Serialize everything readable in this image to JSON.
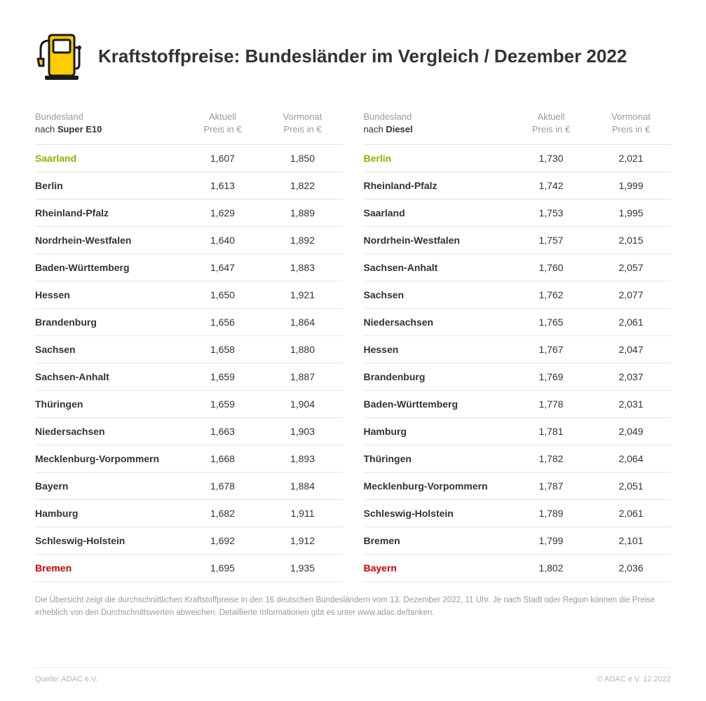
{
  "title": "Kraftstoffpreise: Bundesländer im Vergleich / Dezember 2022",
  "colors": {
    "accent_yellow": "#ffcc00",
    "icon_outline": "#1a1a1a",
    "text": "#333333",
    "muted": "#999999",
    "divider": "#e5e5e5",
    "best": "#8bb400",
    "worst": "#cc0000"
  },
  "left": {
    "header_top": "Bundesland",
    "header_bot_prefix": "nach ",
    "header_bot_bold": "Super E10",
    "col2_top": "Aktuell",
    "col2_bot": "Preis in €",
    "col3_top": "Vormonat",
    "col3_bot": "Preis in €",
    "rows": [
      {
        "name": "Saarland",
        "cur": "1,607",
        "prev": "1,850",
        "cls": "row-best"
      },
      {
        "name": "Berlin",
        "cur": "1,613",
        "prev": "1,822",
        "cls": ""
      },
      {
        "name": "Rheinland-Pfalz",
        "cur": "1,629",
        "prev": "1,889",
        "cls": ""
      },
      {
        "name": "Nordrhein-Westfalen",
        "cur": "1,640",
        "prev": "1,892",
        "cls": ""
      },
      {
        "name": "Baden-Württemberg",
        "cur": "1,647",
        "prev": "1,883",
        "cls": ""
      },
      {
        "name": "Hessen",
        "cur": "1,650",
        "prev": "1,921",
        "cls": ""
      },
      {
        "name": "Brandenburg",
        "cur": "1,656",
        "prev": "1,864",
        "cls": ""
      },
      {
        "name": "Sachsen",
        "cur": "1,658",
        "prev": "1,880",
        "cls": ""
      },
      {
        "name": "Sachsen-Anhalt",
        "cur": "1,659",
        "prev": "1,887",
        "cls": ""
      },
      {
        "name": "Thüringen",
        "cur": "1,659",
        "prev": "1,904",
        "cls": ""
      },
      {
        "name": "Niedersachsen",
        "cur": "1,663",
        "prev": "1,903",
        "cls": ""
      },
      {
        "name": "Mecklenburg-Vorpommern",
        "cur": "1,668",
        "prev": "1,893",
        "cls": ""
      },
      {
        "name": "Bayern",
        "cur": "1,678",
        "prev": "1,884",
        "cls": ""
      },
      {
        "name": "Hamburg",
        "cur": "1,682",
        "prev": "1,911",
        "cls": ""
      },
      {
        "name": "Schleswig-Holstein",
        "cur": "1,692",
        "prev": "1,912",
        "cls": ""
      },
      {
        "name": "Bremen",
        "cur": "1,695",
        "prev": "1,935",
        "cls": "row-worst"
      }
    ]
  },
  "right": {
    "header_top": "Bundesland",
    "header_bot_prefix": "nach ",
    "header_bot_bold": "Diesel",
    "col2_top": "Aktuell",
    "col2_bot": "Preis in €",
    "col3_top": "Vormonat",
    "col3_bot": "Preis in €",
    "rows": [
      {
        "name": "Berlin",
        "cur": "1,730",
        "prev": "2,021",
        "cls": "row-best"
      },
      {
        "name": "Rheinland-Pfalz",
        "cur": "1,742",
        "prev": "1,999",
        "cls": ""
      },
      {
        "name": "Saarland",
        "cur": "1,753",
        "prev": "1,995",
        "cls": ""
      },
      {
        "name": "Nordrhein-Westfalen",
        "cur": "1,757",
        "prev": "2,015",
        "cls": ""
      },
      {
        "name": "Sachsen-Anhalt",
        "cur": "1,760",
        "prev": "2,057",
        "cls": ""
      },
      {
        "name": "Sachsen",
        "cur": "1,762",
        "prev": "2,077",
        "cls": ""
      },
      {
        "name": "Niedersachsen",
        "cur": "1,765",
        "prev": "2,061",
        "cls": ""
      },
      {
        "name": "Hessen",
        "cur": "1,767",
        "prev": "2,047",
        "cls": ""
      },
      {
        "name": "Brandenburg",
        "cur": "1,769",
        "prev": "2,037",
        "cls": ""
      },
      {
        "name": "Baden-Württemberg",
        "cur": "1,778",
        "prev": "2,031",
        "cls": ""
      },
      {
        "name": "Hamburg",
        "cur": "1,781",
        "prev": "2,049",
        "cls": ""
      },
      {
        "name": "Thüringen",
        "cur": "1,782",
        "prev": "2,064",
        "cls": ""
      },
      {
        "name": "Mecklenburg-Vorpommern",
        "cur": "1,787",
        "prev": "2,051",
        "cls": ""
      },
      {
        "name": "Schleswig-Holstein",
        "cur": "1,789",
        "prev": "2,061",
        "cls": ""
      },
      {
        "name": "Bremen",
        "cur": "1,799",
        "prev": "2,101",
        "cls": ""
      },
      {
        "name": "Bayern",
        "cur": "1,802",
        "prev": "2,036",
        "cls": "row-worst"
      }
    ]
  },
  "footnote": "Die Übersicht zeigt die durchschnittlichen Kraftstoffpreise in den 16 deutschen Bundesländern vom 13. Dezember 2022, 11 Uhr. Je nach Stadt oder Region können die Preise erheblich von den Durchschnittswerten abweichen. Detaillierte Informationen gibt es unter www.adac.de/tanken.",
  "source": "Quelle: ADAC e.V.",
  "copyright": "© ADAC e.V. 12.2022"
}
